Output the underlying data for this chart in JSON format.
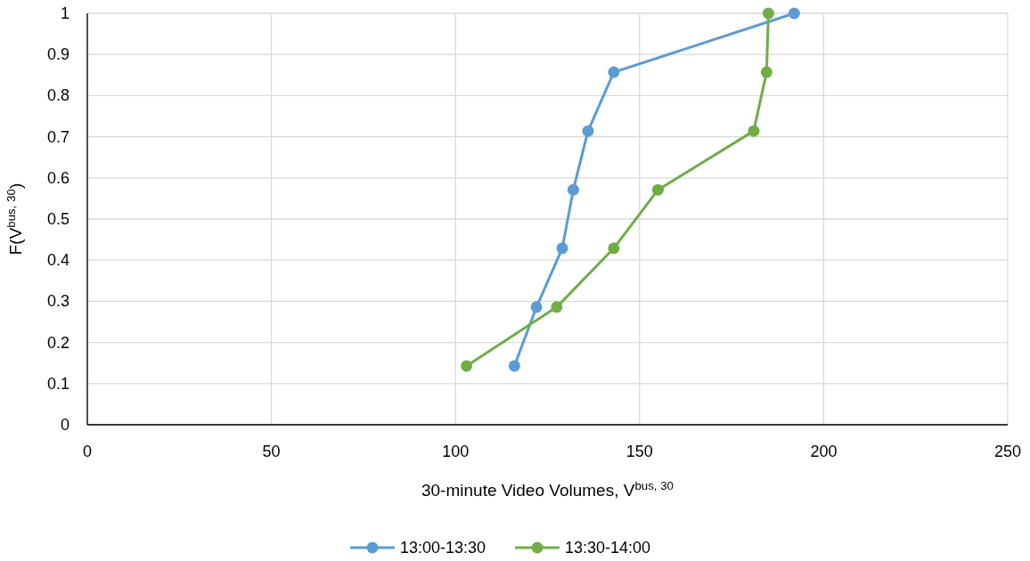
{
  "chart_data": {
    "type": "line",
    "xlabel": "30-minute Video Volumes, V$^{bus, 30}$",
    "ylabel": "F(V$^{bus, 30}$)",
    "xlim": [
      0,
      250
    ],
    "xticks": [
      0,
      50,
      100,
      150,
      200,
      250
    ],
    "ylim": [
      0,
      1
    ],
    "yticks": [
      0,
      0.1,
      0.2,
      0.3,
      0.4,
      0.5,
      0.6,
      0.7,
      0.8,
      0.9,
      1
    ],
    "grid": true,
    "legend": "bottom",
    "marker": "circle",
    "line_style": "solid",
    "series": [
      {
        "name": "13:00-13:30",
        "color": "#5b9bd5",
        "x": [
          116,
          122,
          129,
          132,
          136,
          143,
          192
        ],
        "values": [
          0.143,
          0.286,
          0.429,
          0.571,
          0.714,
          0.857,
          1
        ]
      },
      {
        "name": "13:30-14:00",
        "color": "#70ad47",
        "x": [
          103,
          127.5,
          143,
          155,
          181,
          184.5,
          185
        ],
        "values": [
          0.143,
          0.286,
          0.429,
          0.571,
          0.714,
          0.857,
          1
        ]
      }
    ]
  }
}
